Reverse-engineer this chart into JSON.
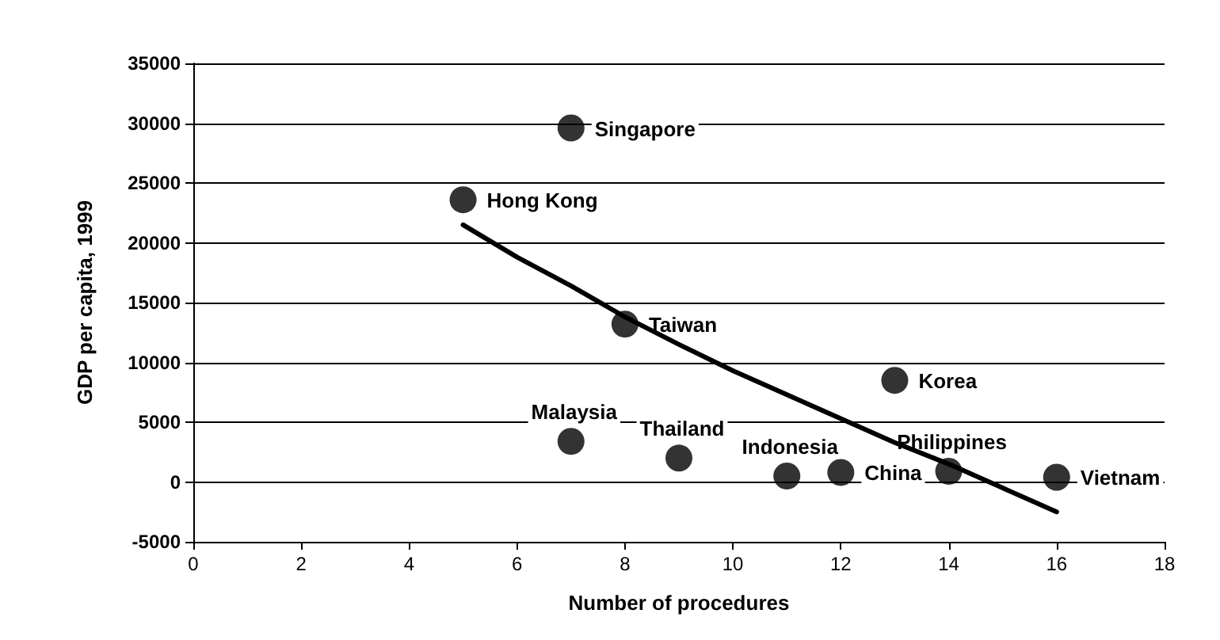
{
  "chart_data": {
    "type": "scatter",
    "xlabel": "Number of procedures",
    "ylabel": "GDP per capita, 1999",
    "xlim": [
      0,
      18
    ],
    "xticks": [
      0,
      2,
      4,
      6,
      8,
      10,
      12,
      14,
      16,
      18
    ],
    "ylim": [
      -5000,
      35000
    ],
    "yticks": [
      -5000,
      0,
      5000,
      10000,
      15000,
      20000,
      25000,
      30000,
      35000
    ],
    "grid": "y",
    "marker": "circle",
    "series": [
      {
        "color": "#000000",
        "x": [
          7,
          5,
          8,
          13,
          7,
          9,
          11,
          12,
          14,
          16
        ],
        "values": [
          29600,
          23600,
          13200,
          8500,
          3400,
          2000,
          500,
          800,
          900,
          400
        ]
      },
      {
        "type": "line",
        "color": "#000000",
        "marker": "none",
        "x": [
          5,
          6,
          7,
          8,
          9,
          10,
          11,
          12,
          13,
          14,
          15,
          16
        ],
        "values": [
          21500,
          18800,
          16400,
          13800,
          11500,
          9300,
          7300,
          5300,
          3300,
          1500,
          -500,
          -2500
        ]
      }
    ],
    "annotations": [
      {
        "text": "Singapore",
        "x": 7,
        "y": 29600
      },
      {
        "text": "Hong Kong",
        "x": 5,
        "y": 23600
      },
      {
        "text": "Taiwan",
        "x": 8,
        "y": 13200
      },
      {
        "text": "Korea",
        "x": 13,
        "y": 8500
      },
      {
        "text": "Malaysia",
        "x": 7,
        "y": 3400
      },
      {
        "text": "Thailand",
        "x": 9,
        "y": 2000
      },
      {
        "text": "Indonesia",
        "x": 11,
        "y": 500
      },
      {
        "text": "China",
        "x": 12,
        "y": 800
      },
      {
        "text": "Philippines",
        "x": 14,
        "y": 900
      },
      {
        "text": "Vietnam",
        "x": 16,
        "y": 400
      }
    ]
  }
}
